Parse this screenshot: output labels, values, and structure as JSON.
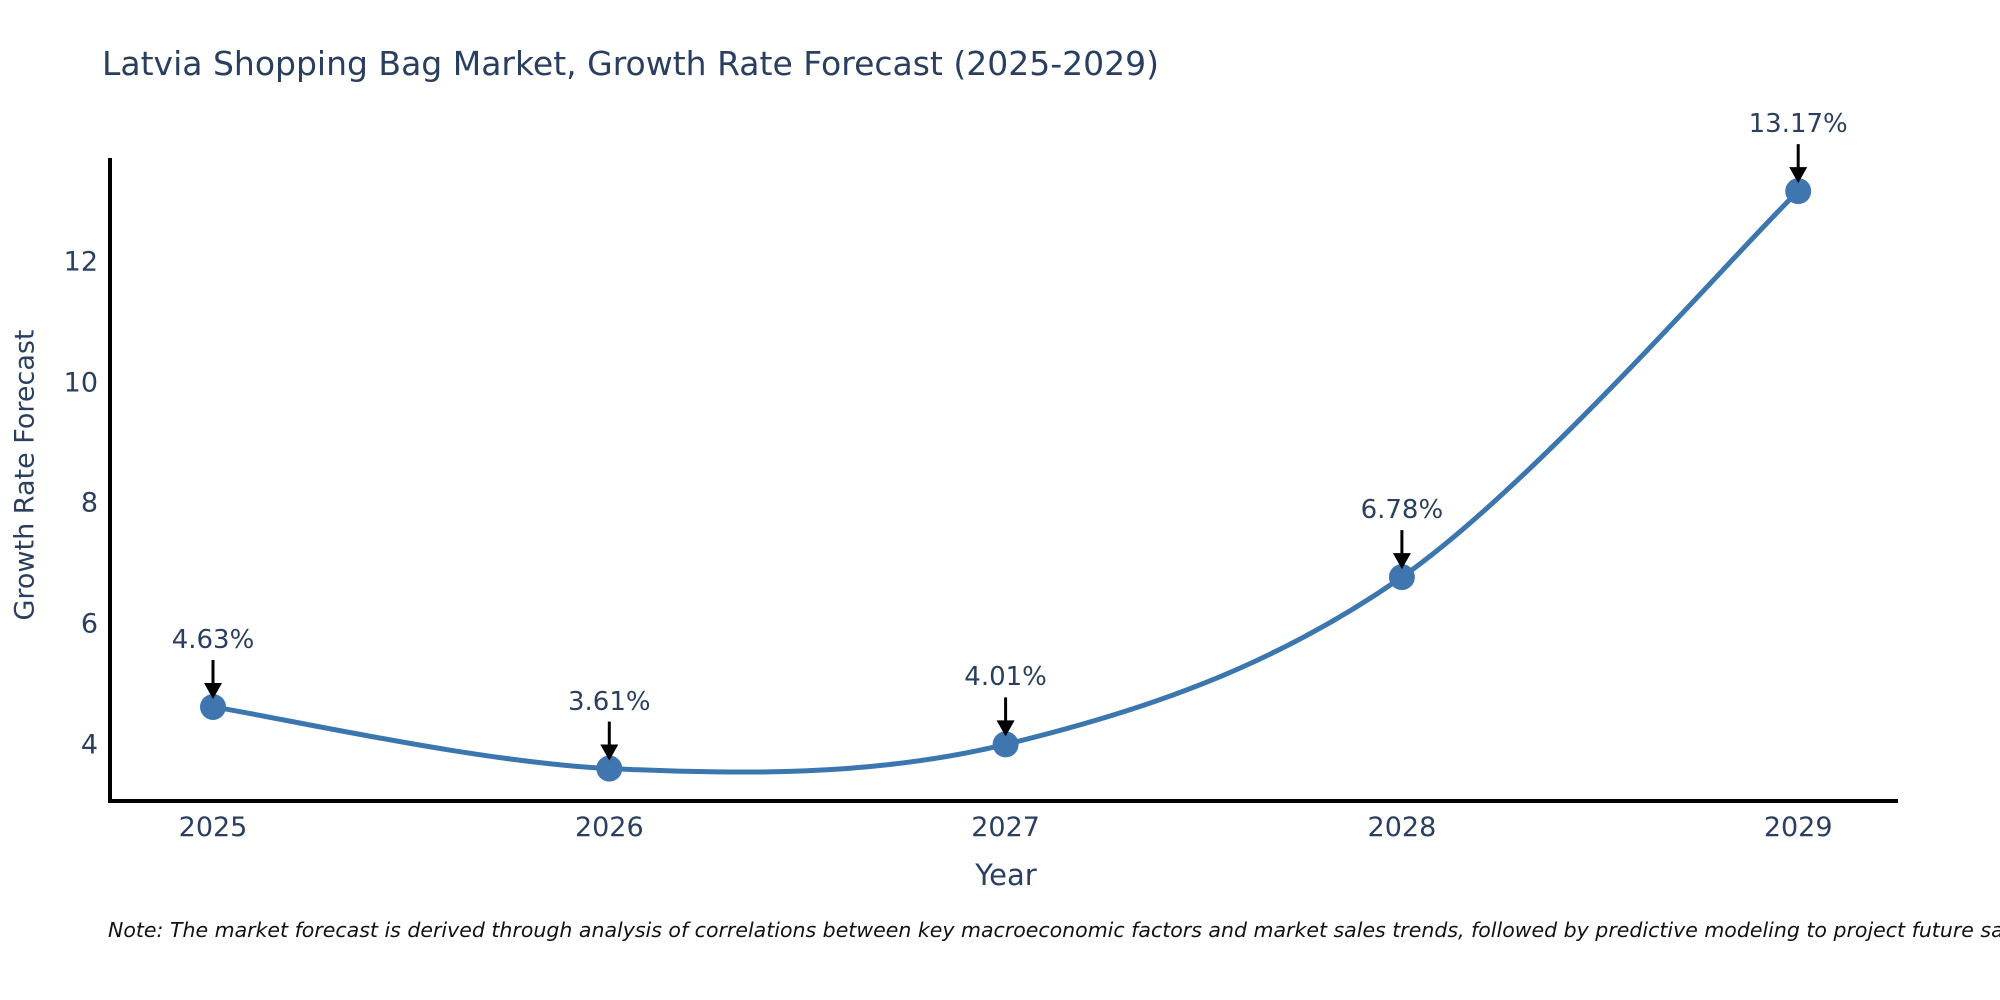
{
  "chart_data": {
    "type": "line",
    "title": "Latvia Shopping Bag Market, Growth Rate Forecast (2025-2029)",
    "xlabel": "Year",
    "ylabel": "Growth Rate Forecast",
    "x": [
      2025,
      2026,
      2027,
      2028,
      2029
    ],
    "values": [
      4.63,
      3.61,
      4.01,
      6.78,
      13.17
    ],
    "point_labels": [
      "4.63%",
      "3.61%",
      "4.01%",
      "6.78%",
      "13.17%"
    ],
    "y_ticks": [
      4,
      6,
      8,
      10,
      12
    ],
    "ylim": [
      3.1,
      13.65
    ],
    "grid": false,
    "legend_position": "none",
    "line_shape": "spline",
    "note": "Note: The market forecast is derived through analysis of correlations between key macroeconomic factors and market sales trends, followed by predictive modeling to project future sales",
    "colors": {
      "line": "#3c76af",
      "marker": "#3f76b0",
      "text": "#2a3f5f",
      "axis_line": "#000000",
      "arrow": "#000000",
      "note_text": "#111111",
      "background": "#ffffff"
    }
  }
}
